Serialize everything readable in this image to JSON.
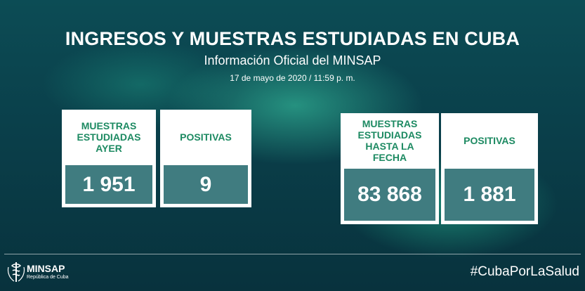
{
  "header": {
    "title": "INGRESOS Y MUESTRAS ESTUDIADAS EN CUBA",
    "subtitle": "Información Oficial del MINSAP",
    "date": "17 de mayo de 2020 / 11:59 p. m."
  },
  "cards": [
    {
      "label": "MUESTRAS ESTUDIADAS AYER",
      "value": "1 951"
    },
    {
      "label": "POSITIVAS",
      "value": "9"
    },
    {
      "label": "MUESTRAS ESTUDIADAS HASTA LA FECHA",
      "value": "83 868"
    },
    {
      "label": "POSITIVAS",
      "value": "1 881"
    }
  ],
  "footer": {
    "logo_name": "MINSAP",
    "logo_sub": "República de Cuba",
    "hashtag": "#CubaPorLaSalud"
  },
  "colors": {
    "background": "#0a3f4a",
    "label_green": "#1d8a62",
    "value_box": "#165f64"
  },
  "icons": [
    "minsap-emblem-icon"
  ]
}
